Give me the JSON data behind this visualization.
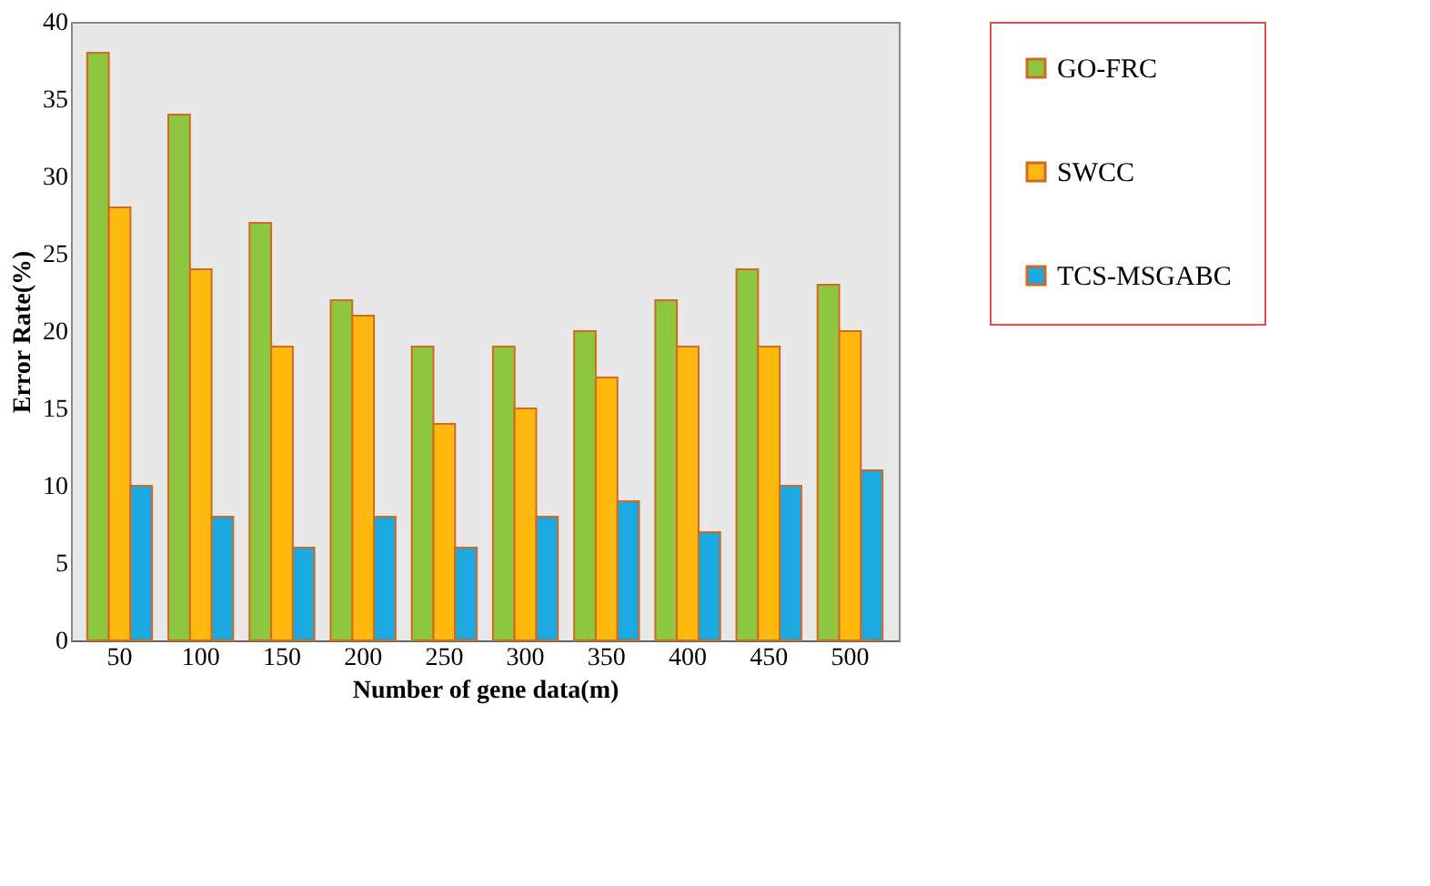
{
  "chart_data": {
    "type": "bar",
    "xlabel": "Number of gene data(m)",
    "ylabel": "Error Rate(%)",
    "categories": [
      "50",
      "100",
      "150",
      "200",
      "250",
      "300",
      "350",
      "400",
      "450",
      "500"
    ],
    "series": [
      {
        "name": "GO-FRC",
        "color": "#8dc63f",
        "values": [
          38,
          34,
          27,
          22,
          19,
          19,
          20,
          22,
          24,
          23
        ]
      },
      {
        "name": "SWCC",
        "color": "#ffb90f",
        "values": [
          28,
          24,
          19,
          21,
          14,
          15,
          17,
          19,
          19,
          20
        ]
      },
      {
        "name": "TCS-MSGABC",
        "color": "#1ca9e1",
        "values": [
          10,
          8,
          6,
          8,
          6,
          8,
          9,
          7,
          10,
          11
        ]
      }
    ],
    "ylim": [
      0,
      40
    ],
    "yticks": [
      0,
      5,
      10,
      15,
      20,
      25,
      30,
      35,
      40
    ],
    "grid": false,
    "legend": "right"
  }
}
